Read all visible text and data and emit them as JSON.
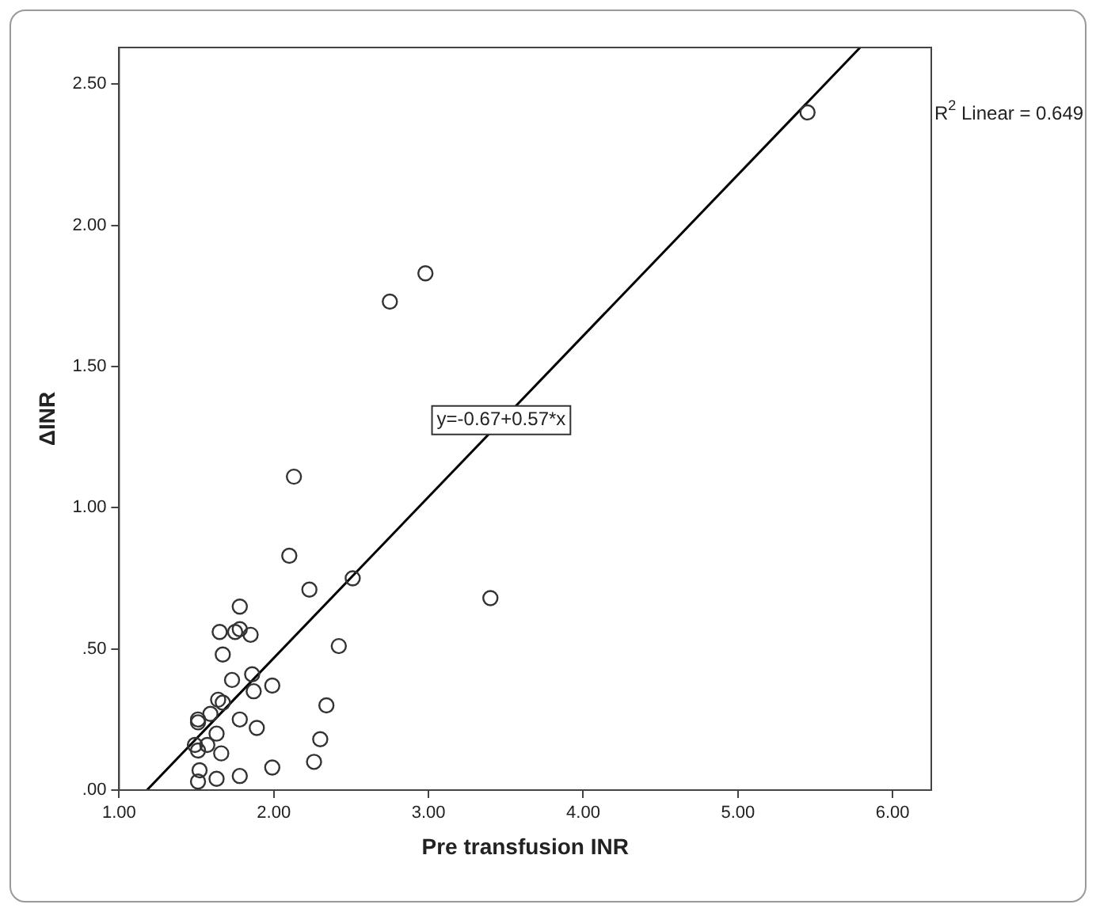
{
  "chart_data": {
    "type": "scatter",
    "xlabel": "Pre transfusion INR",
    "ylabel": "ΔINR",
    "xlim": [
      1,
      6.25
    ],
    "ylim": [
      0,
      2.63
    ],
    "xticks": [
      {
        "value": 1,
        "label": "1.00"
      },
      {
        "value": 2,
        "label": "2.00"
      },
      {
        "value": 3,
        "label": "3.00"
      },
      {
        "value": 4,
        "label": "4.00"
      },
      {
        "value": 5,
        "label": "5.00"
      },
      {
        "value": 6,
        "label": "6.00"
      }
    ],
    "yticks": [
      {
        "value": 0,
        "label": ".00"
      },
      {
        "value": 0.5,
        "label": ".50"
      },
      {
        "value": 1,
        "label": "1.00"
      },
      {
        "value": 1.5,
        "label": "1.50"
      },
      {
        "value": 2,
        "label": "2.00"
      },
      {
        "value": 2.5,
        "label": "2.50"
      }
    ],
    "grid": false,
    "legend": false,
    "series": [
      {
        "marker": "circle",
        "color": "#333333",
        "x": [
          5.45,
          2.98,
          2.75,
          2.13,
          2.1,
          2.51,
          2.23,
          1.78,
          1.65,
          1.75,
          1.78,
          1.85,
          2.42,
          1.67,
          1.73,
          1.86,
          1.87,
          1.99,
          1.64,
          1.67,
          2.34,
          1.59,
          1.51,
          1.51,
          1.78,
          1.89,
          1.63,
          2.3,
          1.49,
          1.57,
          1.51,
          1.66,
          2.26,
          1.99,
          1.52,
          1.78,
          1.63,
          1.51,
          3.4
        ],
        "values": [
          2.4,
          1.83,
          1.73,
          1.11,
          0.83,
          0.75,
          0.71,
          0.65,
          0.56,
          0.56,
          0.57,
          0.55,
          0.51,
          0.48,
          0.39,
          0.41,
          0.35,
          0.37,
          0.32,
          0.31,
          0.3,
          0.27,
          0.25,
          0.24,
          0.25,
          0.22,
          0.2,
          0.18,
          0.16,
          0.16,
          0.14,
          0.13,
          0.1,
          0.08,
          0.07,
          0.05,
          0.04,
          0.03,
          0.68
        ]
      },
      {
        "type": "line",
        "marker": "none",
        "color": "#000000",
        "x": [
          1.18,
          5.79
        ],
        "values": [
          0.0,
          2.63
        ]
      }
    ],
    "annotations": [
      {
        "text": "y=-0.67+0.57*x",
        "x": 3.47,
        "y": 1.31
      },
      "R$^{2}$ Linear = 0.649"
    ]
  }
}
